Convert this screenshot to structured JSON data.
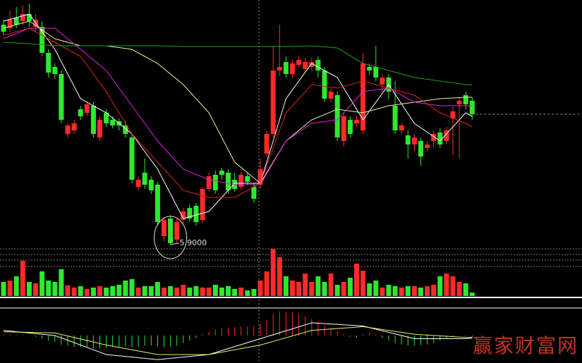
{
  "chart_data": [
    {
      "type": "candlestick",
      "open": [
        9.02,
        8.97,
        9.12,
        9.07,
        9.17,
        8.99,
        8.99,
        8.62,
        8.42,
        8.32,
        7.47,
        7.52,
        7.82,
        7.77,
        7.87,
        7.42,
        7.77,
        7.67,
        7.65,
        7.59,
        7.42,
        6.72,
        6.92,
        6.82,
        6.75,
        6.02,
        6.27,
        5.97,
        6.25,
        6.42,
        6.45,
        6.25,
        6.69,
        6.89,
        6.95,
        6.92,
        6.82,
        6.72,
        6.87,
        6.72,
        6.75,
        7.19,
        7.47,
        8.37,
        8.49,
        8.32,
        8.45,
        8.39,
        8.42,
        8.52,
        8.37,
        7.97,
        8.02,
        7.37,
        7.67,
        7.62,
        7.52,
        8.42,
        8.42,
        8.17,
        8.27,
        7.87,
        7.52,
        7.45,
        7.32,
        7.37,
        7.27,
        7.37,
        7.49,
        7.37,
        7.69,
        7.89,
        8.02,
        7.94
      ],
      "high": [
        9.09,
        9.22,
        9.27,
        9.29,
        9.32,
        9.17,
        9.07,
        8.67,
        8.47,
        8.37,
        7.62,
        7.67,
        7.87,
        7.92,
        7.92,
        7.72,
        7.82,
        7.72,
        7.69,
        7.65,
        7.47,
        6.87,
        7.12,
        6.87,
        6.79,
        6.29,
        6.32,
        6.27,
        6.42,
        6.47,
        6.49,
        6.72,
        6.92,
        6.95,
        6.99,
        6.97,
        6.92,
        6.93,
        6.92,
        6.77,
        7.12,
        7.52,
        8.72,
        9.02,
        8.57,
        8.52,
        8.57,
        8.55,
        8.55,
        8.57,
        8.42,
        8.12,
        8.07,
        7.77,
        7.72,
        7.72,
        8.62,
        8.47,
        8.72,
        8.32,
        8.32,
        8.22,
        7.62,
        7.52,
        7.47,
        7.42,
        7.37,
        7.52,
        7.55,
        7.57,
        7.85,
        7.99,
        8.07,
        7.99
      ],
      "low": [
        8.87,
        8.92,
        8.97,
        9.02,
        8.99,
        8.92,
        8.57,
        8.27,
        8.25,
        7.62,
        7.42,
        7.47,
        7.67,
        7.72,
        7.42,
        7.37,
        7.57,
        7.55,
        7.52,
        7.42,
        6.77,
        6.67,
        6.69,
        6.62,
        6.17,
        5.95,
        5.9,
        5.92,
        6.19,
        6.22,
        6.17,
        6.21,
        6.65,
        6.62,
        6.82,
        6.62,
        6.65,
        6.67,
        6.75,
        6.49,
        6.69,
        7.15,
        7.42,
        8.29,
        8.27,
        8.27,
        8.41,
        8.35,
        8.37,
        8.27,
        7.92,
        7.92,
        7.37,
        7.29,
        7.42,
        7.57,
        7.47,
        8.31,
        8.22,
        8.07,
        7.97,
        7.47,
        7.47,
        7.12,
        7.22,
        7.02,
        7.22,
        7.27,
        7.27,
        7.32,
        7.17,
        7.12,
        7.82,
        7.67
      ],
      "close": [
        8.92,
        9.09,
        9.02,
        9.17,
        9.07,
        9.09,
        8.62,
        8.34,
        8.32,
        7.67,
        7.59,
        7.62,
        7.72,
        7.89,
        7.47,
        7.67,
        7.62,
        7.59,
        7.59,
        7.47,
        6.82,
        6.82,
        6.75,
        6.67,
        6.22,
        6.25,
        5.92,
        6.22,
        6.37,
        6.27,
        6.22,
        6.69,
        6.87,
        6.67,
        6.89,
        6.67,
        6.69,
        6.89,
        6.79,
        6.55,
        6.97,
        7.47,
        8.37,
        8.42,
        8.32,
        8.47,
        8.52,
        8.49,
        8.49,
        8.37,
        7.97,
        8.07,
        7.42,
        7.72,
        7.47,
        7.67,
        8.47,
        8.37,
        8.27,
        8.27,
        8.07,
        7.52,
        7.59,
        7.32,
        7.42,
        7.15,
        7.32,
        7.47,
        7.32,
        7.52,
        7.79,
        7.94,
        7.89,
        7.75
      ],
      "up_color": "#ff2a2a",
      "down_color": "#2ee82e",
      "ylim": [
        5.87,
        9.37
      ],
      "annotation": "5.9000",
      "lines": [
        {
          "color": "#ffffff",
          "x": [
            0,
            4,
            8,
            12,
            16,
            20,
            24,
            28,
            32,
            36,
            40,
            44,
            48,
            52,
            56,
            60,
            64,
            68,
            72,
            73
          ],
          "values": [
            9.07,
            9.17,
            8.67,
            7.97,
            7.77,
            7.47,
            6.97,
            6.27,
            6.37,
            6.77,
            6.77,
            7.97,
            8.47,
            8.27,
            7.67,
            8.17,
            7.62,
            7.37,
            7.77,
            7.72
          ]
        },
        {
          "color": "#f2f2a0",
          "x": [
            0,
            4,
            8,
            12,
            16,
            20,
            24,
            28,
            32,
            36,
            40,
            44,
            48,
            52,
            56,
            60,
            64,
            68,
            72,
            73
          ],
          "values": [
            8.97,
            9.07,
            8.82,
            8.72,
            8.72,
            8.67,
            8.47,
            8.17,
            7.77,
            7.07,
            6.77,
            7.37,
            7.67,
            7.82,
            7.77,
            7.87,
            7.92,
            7.97,
            7.99,
            7.99
          ]
        },
        {
          "color": "#e020e0",
          "x": [
            0,
            4,
            8,
            12,
            16,
            20,
            24,
            28,
            32,
            36,
            40,
            44,
            48,
            52,
            56,
            60,
            64,
            68,
            72,
            73
          ],
          "values": [
            8.82,
            8.97,
            8.97,
            8.67,
            8.37,
            7.87,
            7.37,
            6.97,
            6.82,
            6.75,
            6.75,
            7.37,
            7.62,
            7.67,
            8.07,
            8.12,
            7.92,
            7.87,
            7.87,
            7.87
          ]
        },
        {
          "color": "#e02020",
          "x": [
            0,
            4,
            8,
            12,
            16,
            20,
            24,
            28,
            32,
            36,
            40,
            44,
            48,
            52,
            56,
            60,
            64,
            68,
            72,
            73
          ],
          "values": [
            8.87,
            8.97,
            8.77,
            8.57,
            8.07,
            7.47,
            7.07,
            6.67,
            6.57,
            6.57,
            6.77,
            7.77,
            8.17,
            8.12,
            8.22,
            8.12,
            8.02,
            7.77,
            7.62,
            7.57
          ]
        },
        {
          "color": "#20a020",
          "x": [
            0,
            4,
            8,
            12,
            16,
            20,
            24,
            28,
            32,
            36,
            40,
            44,
            48,
            52,
            56,
            60,
            64,
            68,
            72,
            73
          ],
          "values": [
            8.77,
            8.75,
            8.72,
            8.72,
            8.72,
            8.72,
            8.72,
            8.71,
            8.71,
            8.71,
            8.71,
            8.71,
            8.72,
            8.69,
            8.47,
            8.37,
            8.27,
            8.22,
            8.17,
            8.16
          ]
        }
      ]
    },
    {
      "type": "volume",
      "values": [
        20,
        22,
        28,
        50,
        20,
        18,
        35,
        22,
        20,
        38,
        15,
        12,
        14,
        10,
        12,
        14,
        12,
        14,
        16,
        22,
        24,
        12,
        14,
        14,
        20,
        12,
        14,
        12,
        16,
        12,
        14,
        12,
        12,
        16,
        12,
        14,
        10,
        12,
        8,
        10,
        22,
        35,
        67,
        55,
        28,
        22,
        20,
        32,
        20,
        28,
        20,
        32,
        16,
        20,
        26,
        46,
        36,
        18,
        22,
        12,
        16,
        14,
        12,
        14,
        14,
        12,
        14,
        16,
        28,
        32,
        28,
        20,
        18,
        5
      ],
      "ylim": [
        0,
        70
      ]
    },
    {
      "type": "macd",
      "histogram": [
        2,
        2,
        1,
        1,
        0,
        -2,
        -5,
        -8,
        -10,
        -14,
        -16,
        -18,
        -18,
        -19,
        -20,
        -20,
        -19,
        -18,
        -18,
        -17,
        -18,
        -17,
        -16,
        -16,
        -17,
        -18,
        -18,
        -16,
        -12,
        -8,
        -4,
        2,
        6,
        10,
        12,
        12,
        13,
        14,
        14,
        15,
        18,
        25,
        34,
        38,
        38,
        36,
        34,
        30,
        26,
        22,
        16,
        12,
        6,
        2,
        -2,
        -3,
        2,
        4,
        2,
        -4,
        -8,
        -12,
        -14,
        -16,
        -16,
        -15,
        -14,
        -12,
        -8,
        -4,
        -2,
        0,
        -1,
        -3
      ],
      "ylim": [
        -40,
        40
      ],
      "lines": [
        {
          "color": "#ffffff",
          "x": [
            0,
            8,
            16,
            24,
            32,
            40,
            48,
            56,
            64,
            72,
            73
          ],
          "values": [
            8,
            0,
            -30,
            -38,
            -30,
            -5,
            20,
            15,
            -5,
            -5,
            -4
          ]
        },
        {
          "color": "#f0f060",
          "x": [
            0,
            8,
            16,
            24,
            32,
            40,
            48,
            56,
            64,
            72,
            73
          ],
          "values": [
            6,
            4,
            -15,
            -30,
            -30,
            -15,
            8,
            14,
            2,
            -3,
            -3
          ]
        }
      ]
    }
  ],
  "watermark": "赢家财富网"
}
